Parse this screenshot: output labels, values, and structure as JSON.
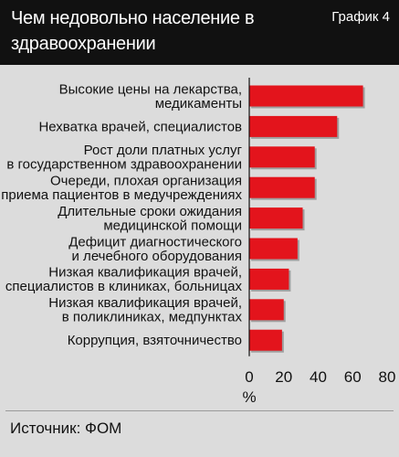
{
  "header": {
    "title": "Чем недовольно население в здравоохранении",
    "badge": "График 4"
  },
  "footer": {
    "source": "Источник: ФОМ"
  },
  "colors": {
    "bar": "#e3141c",
    "bar_shadow": "#6e6e6e",
    "header_bg": "#111111",
    "background": "#dcdcdc"
  },
  "chart_data": {
    "type": "bar",
    "orientation": "horizontal",
    "categories": [
      [
        "Высокие цены на лекарства,",
        "медикаменты"
      ],
      [
        "Нехватка врачей, специалистов"
      ],
      [
        "Рост доли платных услуг",
        "в государственном здравоохранении"
      ],
      [
        "Очереди, плохая организация",
        "приема пациентов в медучреждениях"
      ],
      [
        "Длительные сроки ожидания",
        "медицинской помощи"
      ],
      [
        "Дефицит диагностического",
        "и лечебного оборудования"
      ],
      [
        "Низкая квалификация врачей,",
        "специалистов в клиниках, больницах"
      ],
      [
        "Низкая квалификация врачей,",
        "в поликлиниках, медпунктах"
      ],
      [
        "Коррупция, взяточничество"
      ]
    ],
    "values": [
      66,
      51,
      38,
      38,
      31,
      28,
      23,
      20,
      19
    ],
    "xlim": [
      0,
      80
    ],
    "xticks": [
      0,
      20,
      40,
      60,
      80
    ],
    "xlabel": "%",
    "grid": false,
    "legend": "none"
  }
}
